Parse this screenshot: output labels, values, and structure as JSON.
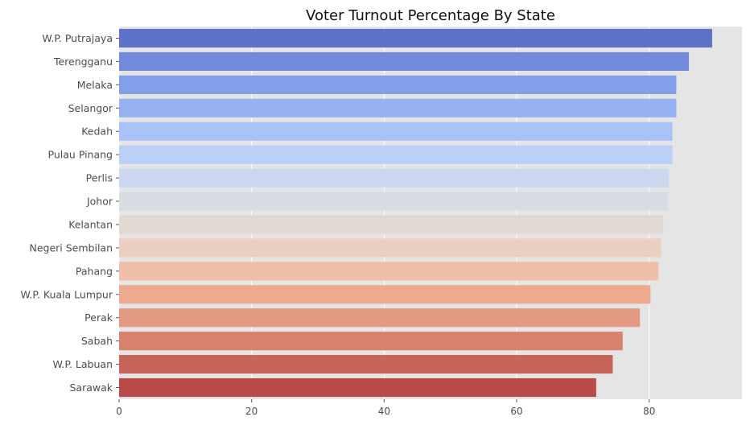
{
  "chart_data": {
    "type": "bar",
    "orientation": "horizontal",
    "title": "Voter Turnout Percentage By State",
    "xlabel": "",
    "ylabel": "",
    "xlim": [
      0,
      94
    ],
    "xticks": [
      0,
      20,
      40,
      60,
      80
    ],
    "grid": true,
    "background": "#e5e5e5",
    "categories": [
      "W.P. Putrajaya",
      "Terengganu",
      "Melaka",
      "Selangor",
      "Kedah",
      "Pulau Pinang",
      "Perlis",
      "Johor",
      "Kelantan",
      "Negeri Sembilan",
      "Pahang",
      "W.P. Kuala Lumpur",
      "Perak",
      "Sabah",
      "W.P. Labuan",
      "Sarawak"
    ],
    "values": [
      89.5,
      86.0,
      84.1,
      84.1,
      83.5,
      83.5,
      83.0,
      82.8,
      82.1,
      81.8,
      81.4,
      80.2,
      78.6,
      76.0,
      74.5,
      72.0
    ],
    "colors": [
      "#5e73c8",
      "#7389dc",
      "#849fe9",
      "#97b2f2",
      "#a9c3f8",
      "#bbd0f7",
      "#ccd8ef",
      "#d9dce3",
      "#e3d9d3",
      "#ebd0c2",
      "#f1bfa8",
      "#eeaa8e",
      "#e49a82",
      "#d8826e",
      "#c8655a",
      "#b84b48"
    ]
  }
}
